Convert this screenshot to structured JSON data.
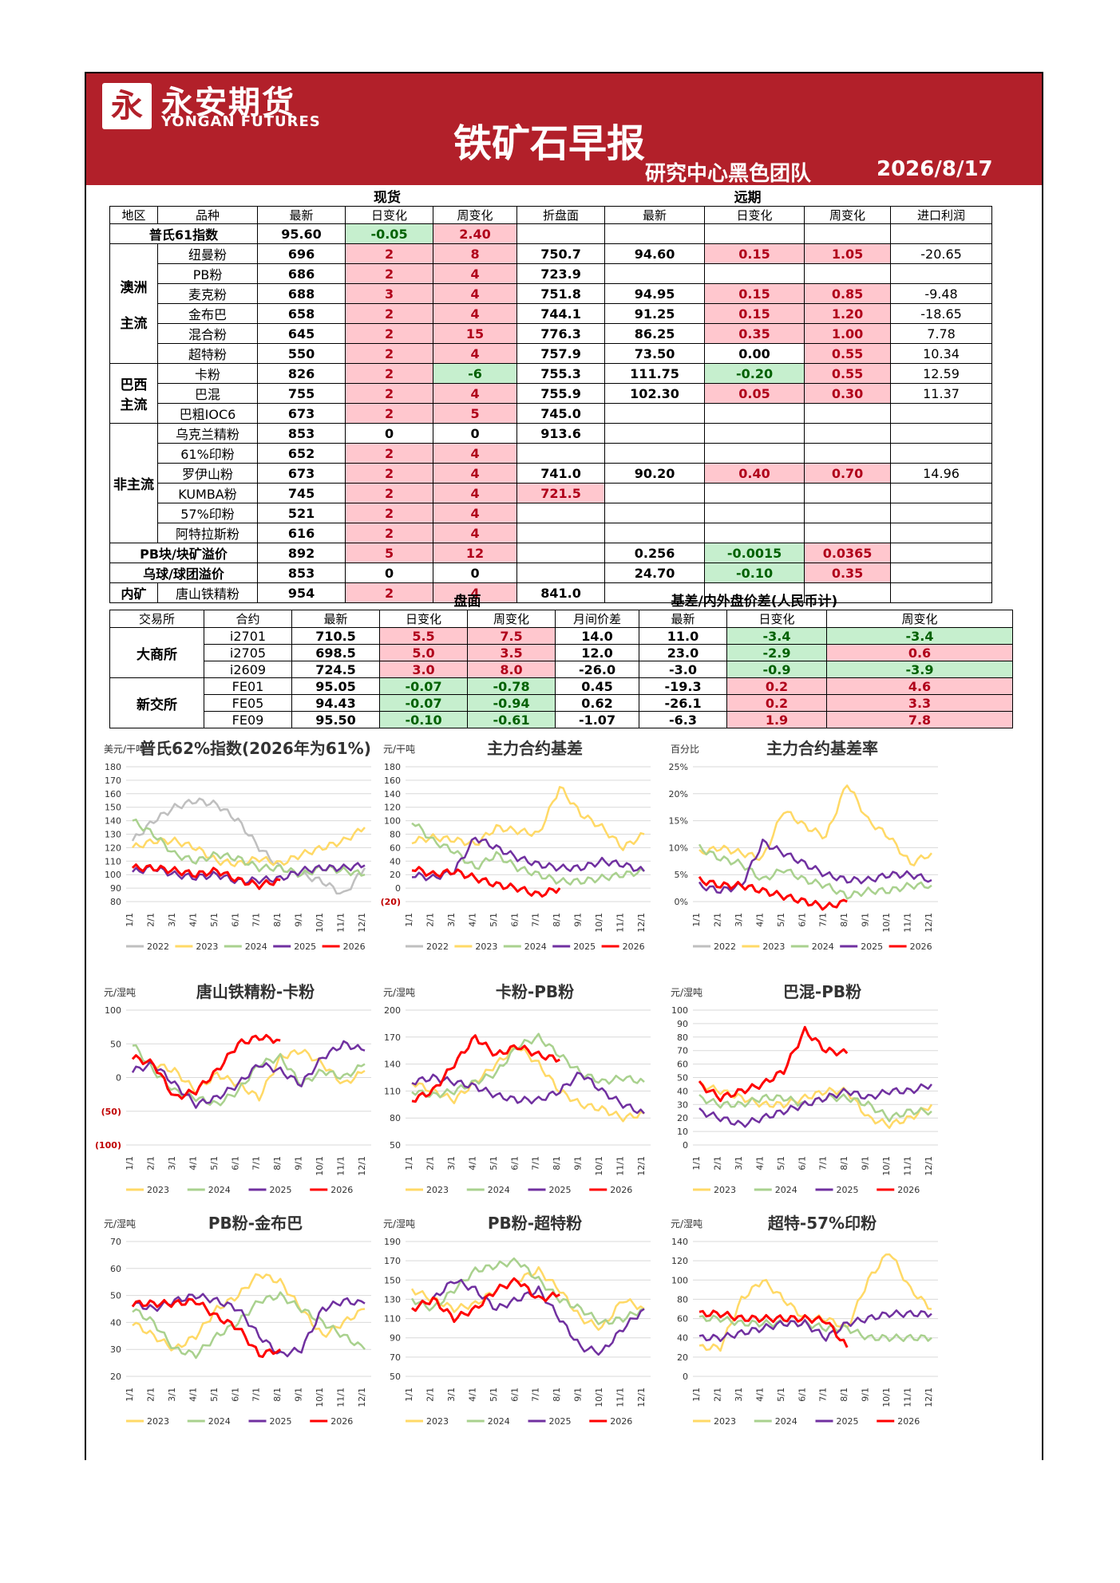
{
  "header": {
    "logo_cn": "永安期货",
    "logo_en": "YONGAN FUTURES",
    "title": "铁矿石早报",
    "subtitle": "研究中心黑色团队",
    "date": "2026/8/17"
  },
  "spot": {
    "section_spot": "现货",
    "section_far": "远期",
    "headers": [
      "地区",
      "品种",
      "最新",
      "日变化",
      "周变化",
      "折盘面",
      "最新",
      "日变化",
      "周变化",
      "进口利润"
    ],
    "platts_label": "普氏61指数",
    "platts": [
      "95.60",
      "-0.05",
      "2.40"
    ],
    "regions": [
      "澳洲\n\n主流",
      "巴西\n主流",
      "非主流"
    ],
    "rows": [
      [
        "纽曼粉",
        "696",
        "2",
        "8",
        "750.7",
        "94.60",
        "0.15",
        "1.05",
        "-20.65"
      ],
      [
        "PB粉",
        "686",
        "2",
        "4",
        "723.9",
        "",
        "",
        "",
        ""
      ],
      [
        "麦克粉",
        "688",
        "3",
        "4",
        "751.8",
        "94.95",
        "0.15",
        "0.85",
        "-9.48"
      ],
      [
        "金布巴",
        "658",
        "2",
        "4",
        "744.1",
        "91.25",
        "0.15",
        "1.20",
        "-18.65"
      ],
      [
        "混合粉",
        "645",
        "2",
        "15",
        "776.3",
        "86.25",
        "0.35",
        "1.00",
        "7.78"
      ],
      [
        "超特粉",
        "550",
        "2",
        "4",
        "757.9",
        "73.50",
        "0.00",
        "0.55",
        "10.34"
      ],
      [
        "卡粉",
        "826",
        "2",
        "-6",
        "755.3",
        "111.75",
        "-0.20",
        "0.55",
        "12.59"
      ],
      [
        "巴混",
        "755",
        "2",
        "4",
        "755.9",
        "102.30",
        "0.05",
        "0.30",
        "11.37"
      ],
      [
        "巴粗IOC6",
        "673",
        "2",
        "5",
        "745.0",
        "",
        "",
        "",
        ""
      ],
      [
        "乌克兰精粉",
        "853",
        "0",
        "0",
        "913.6",
        "",
        "",
        "",
        ""
      ],
      [
        "61%印粉",
        "652",
        "2",
        "4",
        "",
        "",
        "",
        "",
        ""
      ],
      [
        "罗伊山粉",
        "673",
        "2",
        "4",
        "741.0",
        "90.20",
        "0.40",
        "0.70",
        "14.96"
      ],
      [
        "KUMBA粉",
        "745",
        "2",
        "4",
        "721.5",
        "",
        "",
        "",
        ""
      ],
      [
        "57%印粉",
        "521",
        "2",
        "4",
        "",
        "",
        "",
        "",
        ""
      ],
      [
        "阿特拉斯粉",
        "616",
        "2",
        "4",
        "",
        "",
        "",
        "",
        ""
      ]
    ],
    "premium": [
      {
        "label": "PB块/块矿溢价",
        "v": [
          "892",
          "5",
          "12",
          "",
          "0.256",
          "-0.0015",
          "0.0365",
          ""
        ]
      },
      {
        "label": "乌球/球团溢价",
        "v": [
          "853",
          "0",
          "0",
          "",
          "24.70",
          "-0.10",
          "0.35",
          ""
        ]
      }
    ],
    "domestic": {
      "label": "内矿",
      "name": "唐山铁精粉",
      "v": [
        "954",
        "2",
        "4",
        "841.0",
        "",
        "",
        "",
        ""
      ]
    }
  },
  "futures": {
    "section_disk": "盘面",
    "section_basis": "基差/内外盘价差(人民币计)",
    "headers": [
      "交易所",
      "合约",
      "最新",
      "日变化",
      "周变化",
      "月间价差",
      "最新",
      "日变化",
      "周变化"
    ],
    "ex": [
      "大商所",
      "新交所"
    ],
    "rows": [
      [
        "i2701",
        "710.5",
        "5.5",
        "7.5",
        "14.0",
        "11.0",
        "-3.4",
        "-3.4"
      ],
      [
        "i2705",
        "698.5",
        "5.0",
        "3.5",
        "12.0",
        "23.0",
        "-2.9",
        "0.6"
      ],
      [
        "i2609",
        "724.5",
        "3.0",
        "8.0",
        "-26.0",
        "-3.0",
        "-0.9",
        "-3.9"
      ],
      [
        "FE01",
        "95.05",
        "-0.07",
        "-0.78",
        "0.45",
        "-19.3",
        "0.2",
        "4.6"
      ],
      [
        "FE05",
        "94.43",
        "-0.07",
        "-0.94",
        "0.62",
        "-26.1",
        "0.2",
        "3.3"
      ],
      [
        "FE09",
        "95.50",
        "-0.10",
        "-0.61",
        "-1.07",
        "-6.3",
        "1.9",
        "7.8"
      ]
    ]
  },
  "colors": {
    "2022": "#bfbfbf",
    "2023": "#ffd966",
    "2024": "#a9d18e",
    "2025": "#7030a0",
    "2026": "#ff0000",
    "header_red": "#b2202a"
  },
  "chart_data": [
    {
      "type": "line",
      "title": "普氏62%指数(2026年为61%)",
      "unit": "美元/干吨",
      "yticks": [
        "180",
        "170",
        "160",
        "150",
        "140",
        "130",
        "120",
        "110",
        "100",
        "90",
        "80"
      ],
      "ylim": [
        80,
        180
      ],
      "xticks": [
        "1/1",
        "2/1",
        "3/1",
        "4/1",
        "5/1",
        "6/1",
        "7/1",
        "8/1",
        "9/1",
        "10/1",
        "11/1",
        "12/1"
      ],
      "series": [
        {
          "name": "2022",
          "values": [
            125,
            140,
            150,
            155,
            152,
            140,
            120,
            105,
            100,
            95,
            85,
            105
          ]
        },
        {
          "name": "2023",
          "values": [
            120,
            125,
            125,
            120,
            110,
            108,
            112,
            108,
            115,
            120,
            125,
            135
          ]
        },
        {
          "name": "2024",
          "values": [
            140,
            130,
            115,
            110,
            115,
            112,
            105,
            105,
            100,
            105,
            103,
            100
          ]
        },
        {
          "name": "2025",
          "values": [
            102,
            105,
            100,
            98,
            100,
            95,
            96,
            97,
            103,
            105,
            105,
            107
          ]
        },
        {
          "name": "2026",
          "values": [
            105,
            105,
            103,
            100,
            103,
            96,
            92,
            96
          ]
        }
      ]
    },
    {
      "type": "line",
      "title": "主力合约基差",
      "unit": "元/干吨",
      "yticks": [
        "180",
        "160",
        "140",
        "120",
        "100",
        "80",
        "60",
        "40",
        "20",
        "0",
        "(20)"
      ],
      "ylim": [
        -20,
        180
      ],
      "xticks": [
        "1/1",
        "2/1",
        "3/1",
        "4/1",
        "5/1",
        "6/1",
        "7/1",
        "8/1",
        "9/1",
        "10/1",
        "11/1",
        "12/1"
      ],
      "series": [
        {
          "name": "2022",
          "values": []
        },
        {
          "name": "2023",
          "values": [
            70,
            75,
            72,
            65,
            90,
            85,
            80,
            150,
            110,
            90,
            60,
            80
          ]
        },
        {
          "name": "2024",
          "values": [
            100,
            70,
            55,
            30,
            50,
            30,
            20,
            10,
            10,
            15,
            20,
            25
          ]
        },
        {
          "name": "2025",
          "values": [
            20,
            15,
            25,
            75,
            60,
            45,
            35,
            30,
            30,
            40,
            35,
            25
          ]
        },
        {
          "name": "2026",
          "values": [
            30,
            20,
            25,
            15,
            5,
            0,
            -10,
            0
          ]
        }
      ]
    },
    {
      "type": "line",
      "title": "主力合约基差率",
      "unit": "百分比",
      "yticks": [
        "25%",
        "20%",
        "15%",
        "10%",
        "5%",
        "0%"
      ],
      "ylim": [
        0,
        25
      ],
      "xticks": [
        "1/1",
        "2/1",
        "3/1",
        "4/1",
        "5/1",
        "6/1",
        "7/1",
        "8/1",
        "9/1",
        "10/1",
        "11/1",
        "12/1"
      ],
      "series": [
        {
          "name": "2022",
          "values": []
        },
        {
          "name": "2023",
          "values": [
            9,
            10,
            9,
            8,
            17,
            14,
            12,
            22,
            15,
            12,
            7,
            9
          ]
        },
        {
          "name": "2024",
          "values": [
            10,
            8,
            7,
            4,
            6,
            4,
            3,
            1,
            2,
            2,
            3,
            3
          ]
        },
        {
          "name": "2025",
          "values": [
            3,
            2,
            3,
            11,
            9,
            7,
            5,
            4,
            4,
            5,
            5,
            4
          ]
        },
        {
          "name": "2026",
          "values": [
            4,
            3,
            3,
            2,
            1,
            0,
            -1,
            0
          ]
        }
      ]
    },
    {
      "type": "line",
      "title": "唐山铁精粉-卡粉",
      "unit": "元/湿吨",
      "yticks": [
        "100",
        "50",
        "0",
        "(50)",
        "(100)"
      ],
      "ylim": [
        -100,
        100
      ],
      "xticks": [
        "1/1",
        "2/1",
        "3/1",
        "4/1",
        "5/1",
        "6/1",
        "7/1",
        "8/1",
        "9/1",
        "10/1",
        "11/1",
        "12/1"
      ],
      "series": [
        {
          "name": "2023",
          "values": [
            30,
            20,
            10,
            -20,
            5,
            -10,
            -30,
            30,
            40,
            20,
            -10,
            10
          ]
        },
        {
          "name": "2024",
          "values": [
            50,
            10,
            -20,
            -30,
            -40,
            -20,
            20,
            30,
            -10,
            10,
            0,
            20
          ]
        },
        {
          "name": "2025",
          "values": [
            10,
            20,
            -10,
            -40,
            -30,
            -10,
            20,
            10,
            -10,
            30,
            50,
            40
          ]
        },
        {
          "name": "2026",
          "values": [
            30,
            20,
            -30,
            -20,
            10,
            50,
            60,
            55
          ]
        }
      ]
    },
    {
      "type": "line",
      "title": "卡粉-PB粉",
      "unit": "元/湿吨",
      "yticks": [
        "200",
        "170",
        "140",
        "110",
        "80",
        "50"
      ],
      "ylim": [
        50,
        200
      ],
      "xticks": [
        "1/1",
        "2/1",
        "3/1",
        "4/1",
        "5/1",
        "6/1",
        "7/1",
        "8/1",
        "9/1",
        "10/1",
        "11/1",
        "12/1"
      ],
      "series": [
        {
          "name": "2023",
          "values": [
            120,
            110,
            100,
            120,
            140,
            160,
            140,
            110,
            95,
            90,
            80,
            85
          ]
        },
        {
          "name": "2024",
          "values": [
            110,
            105,
            110,
            120,
            130,
            160,
            170,
            150,
            130,
            120,
            125,
            120
          ]
        },
        {
          "name": "2025",
          "values": [
            120,
            125,
            120,
            115,
            105,
            100,
            100,
            110,
            130,
            110,
            95,
            85
          ]
        },
        {
          "name": "2026",
          "values": [
            100,
            110,
            140,
            170,
            150,
            160,
            150,
            145
          ]
        }
      ]
    },
    {
      "type": "line",
      "title": "巴混-PB粉",
      "unit": "元/湿吨",
      "yticks": [
        "100",
        "90",
        "80",
        "70",
        "60",
        "50",
        "40",
        "30",
        "20",
        "10",
        "0"
      ],
      "ylim": [
        0,
        100
      ],
      "xticks": [
        "1/1",
        "2/1",
        "3/1",
        "4/1",
        "5/1",
        "6/1",
        "7/1",
        "8/1",
        "9/1",
        "10/1",
        "11/1",
        "12/1"
      ],
      "series": [
        {
          "name": "2023",
          "values": [
            45,
            40,
            35,
            30,
            30,
            35,
            40,
            40,
            20,
            15,
            20,
            30
          ]
        },
        {
          "name": "2024",
          "values": [
            35,
            30,
            30,
            35,
            35,
            30,
            35,
            35,
            30,
            20,
            25,
            25
          ]
        },
        {
          "name": "2025",
          "values": [
            25,
            20,
            15,
            20,
            25,
            30,
            35,
            40,
            35,
            40,
            40,
            45
          ]
        },
        {
          "name": "2026",
          "values": [
            45,
            35,
            40,
            45,
            55,
            85,
            70,
            68
          ]
        }
      ]
    },
    {
      "type": "line",
      "title": "PB粉-金布巴",
      "unit": "元/湿吨",
      "yticks": [
        "70",
        "60",
        "50",
        "40",
        "30",
        "20"
      ],
      "ylim": [
        20,
        70
      ],
      "xticks": [
        "1/1",
        "2/1",
        "3/1",
        "4/1",
        "5/1",
        "6/1",
        "7/1",
        "8/1",
        "9/1",
        "10/1",
        "11/1",
        "12/1"
      ],
      "series": [
        {
          "name": "2023",
          "values": [
            40,
            35,
            30,
            35,
            45,
            50,
            58,
            55,
            45,
            35,
            40,
            45
          ]
        },
        {
          "name": "2024",
          "values": [
            45,
            40,
            30,
            28,
            35,
            40,
            48,
            50,
            45,
            40,
            35,
            30
          ]
        },
        {
          "name": "2025",
          "values": [
            47,
            45,
            48,
            50,
            48,
            45,
            35,
            28,
            30,
            45,
            48,
            47
          ]
        },
        {
          "name": "2026",
          "values": [
            47,
            47,
            47,
            48,
            42,
            38,
            28,
            30
          ]
        }
      ]
    },
    {
      "type": "line",
      "title": "PB粉-超特粉",
      "unit": "元/湿吨",
      "yticks": [
        "190",
        "170",
        "150",
        "130",
        "110",
        "90",
        "70",
        "50"
      ],
      "ylim": [
        50,
        190
      ],
      "xticks": [
        "1/1",
        "2/1",
        "3/1",
        "4/1",
        "5/1",
        "6/1",
        "7/1",
        "8/1",
        "9/1",
        "10/1",
        "11/1",
        "12/1"
      ],
      "series": [
        {
          "name": "2023",
          "values": [
            140,
            130,
            120,
            125,
            140,
            150,
            160,
            140,
            110,
            100,
            130,
            120
          ]
        },
        {
          "name": "2024",
          "values": [
            130,
            120,
            140,
            160,
            165,
            170,
            150,
            130,
            120,
            105,
            110,
            120
          ]
        },
        {
          "name": "2025",
          "values": [
            120,
            130,
            150,
            140,
            120,
            130,
            140,
            110,
            80,
            75,
            100,
            120
          ]
        },
        {
          "name": "2026",
          "values": [
            120,
            130,
            110,
            120,
            140,
            150,
            130,
            135
          ]
        }
      ]
    },
    {
      "type": "line",
      "title": "超特-57%印粉",
      "unit": "元/湿吨",
      "yticks": [
        "140",
        "120",
        "100",
        "80",
        "60",
        "40",
        "20",
        "0"
      ],
      "ylim": [
        0,
        140
      ],
      "xticks": [
        "1/1",
        "2/1",
        "3/1",
        "4/1",
        "5/1",
        "6/1",
        "7/1",
        "8/1",
        "9/1",
        "10/1",
        "11/1",
        "12/1"
      ],
      "series": [
        {
          "name": "2023",
          "values": [
            30,
            30,
            80,
            100,
            80,
            60,
            60,
            50,
            100,
            130,
            90,
            70
          ]
        },
        {
          "name": "2024",
          "values": [
            60,
            60,
            55,
            55,
            55,
            55,
            50,
            50,
            40,
            40,
            40,
            40
          ]
        },
        {
          "name": "2025",
          "values": [
            40,
            40,
            45,
            50,
            55,
            55,
            40,
            55,
            60,
            65,
            65,
            65
          ]
        },
        {
          "name": "2026",
          "values": [
            65,
            65,
            60,
            60,
            60,
            60,
            58,
            30
          ]
        }
      ]
    }
  ]
}
